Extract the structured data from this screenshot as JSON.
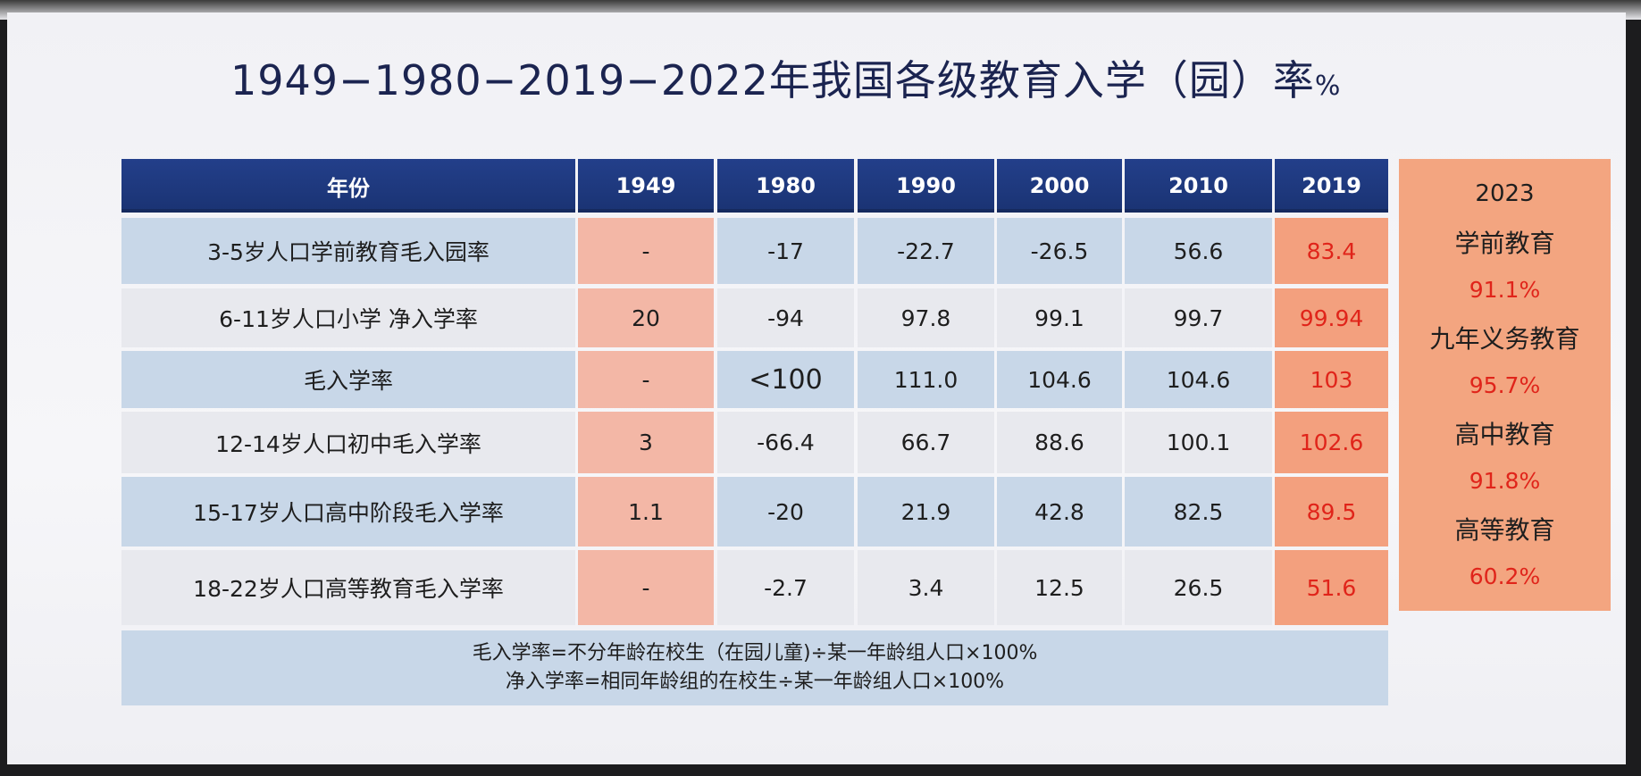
{
  "title": {
    "main": "1949−1980−2019−2022年我国各级教育入学（园）率",
    "unit": "%"
  },
  "table": {
    "headers": [
      "年份",
      "1949",
      "1980",
      "1990",
      "2000",
      "2010",
      "2019"
    ],
    "rows": [
      [
        "3-5岁人口学前教育毛入园率",
        "-",
        "-17",
        "-22.7",
        "-26.5",
        "56.6",
        "83.4"
      ],
      [
        "6-11岁人口小学 净入学率",
        "20",
        "-94",
        "97.8",
        "99.1",
        "99.7",
        "99.94"
      ],
      [
        "毛入学率",
        "-",
        "<100",
        "111.0",
        "104.6",
        "104.6",
        "103"
      ],
      [
        "12-14岁人口初中毛入学率",
        "3",
        "-66.4",
        "66.7",
        "88.6",
        "100.1",
        "102.6"
      ],
      [
        "15-17岁人口高中阶段毛入学率",
        "1.1",
        "-20",
        "21.9",
        "42.8",
        "82.5",
        "89.5"
      ],
      [
        "18-22岁人口高等教育毛入学率",
        "-",
        "-2.7",
        "3.4",
        "12.5",
        "26.5",
        "51.6"
      ]
    ]
  },
  "footnote": {
    "line1": "毛入学率=不分年龄在校生（在园儿童)÷某一年龄组人口×100%",
    "line2": "净入学率=相同年龄组的在校生÷某一年龄组人口×100%"
  },
  "side": {
    "year": "2023",
    "items": [
      {
        "label": "学前教育",
        "value": "91.1%"
      },
      {
        "label": "九年义务教育",
        "value": "95.7%"
      },
      {
        "label": "高中教育",
        "value": "91.8%"
      },
      {
        "label": "高等教育",
        "value": "60.2%"
      }
    ]
  },
  "colors": {
    "header_bg": "#1a3373",
    "row_blue": "#c8d7e8",
    "row_gray": "#e8e9ee",
    "col_1949": "#f3b7a6",
    "col_2019": "#f3a07e",
    "highlight_text": "#e0241a"
  }
}
